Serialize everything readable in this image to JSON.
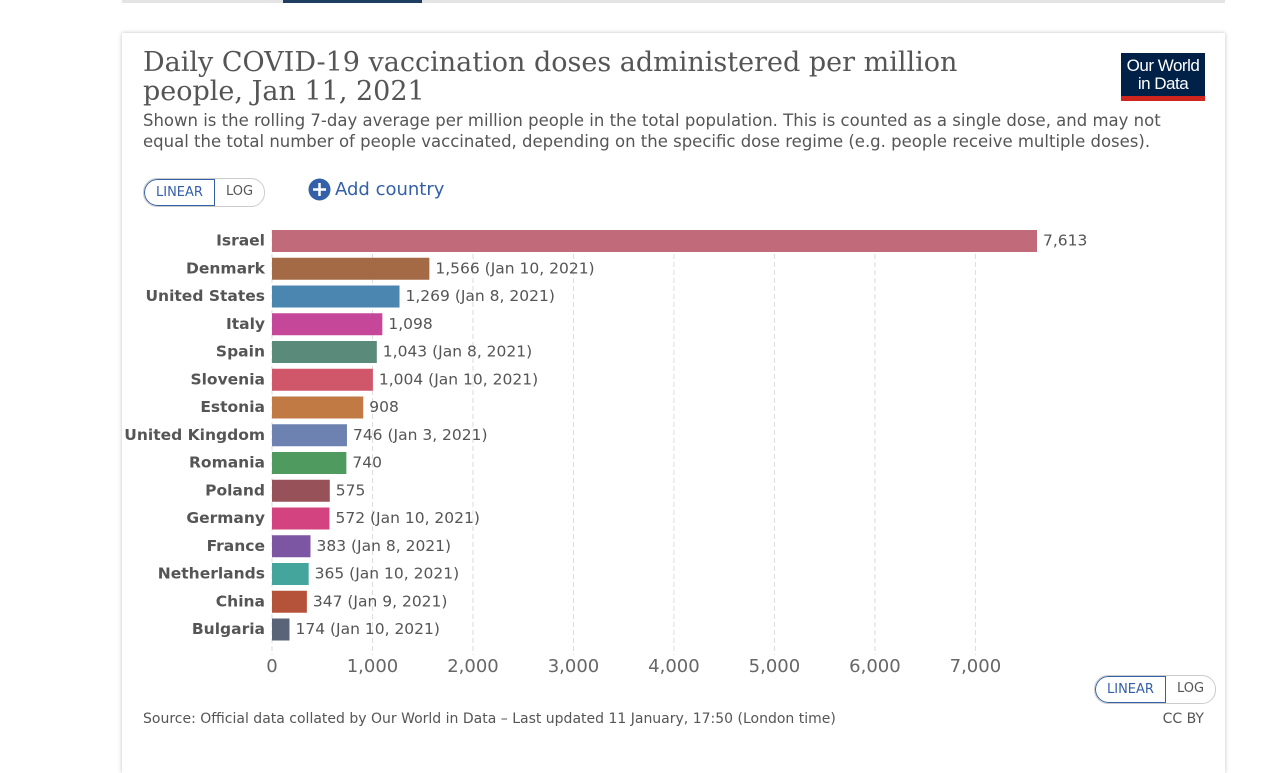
{
  "chart_data": {
    "type": "hbar",
    "title": "Daily COVID-19 vaccination doses administered per million people, Jan 11, 2021",
    "subtitle": "Shown is the rolling 7-day average per million people in the total population. This is counted as a single dose, and may not equal the total number of people vaccinated, depending on the specific dose regime (e.g. people receive multiple doses).",
    "categories": [
      "Israel",
      "Denmark",
      "United States",
      "Italy",
      "Spain",
      "Slovenia",
      "Estonia",
      "United Kingdom",
      "Romania",
      "Poland",
      "Germany",
      "France",
      "Netherlands",
      "China",
      "Bulgaria"
    ],
    "values": [
      7613,
      1566,
      1269,
      1098,
      1043,
      1004,
      908,
      746,
      740,
      575,
      572,
      383,
      365,
      347,
      174
    ],
    "value_labels": [
      "7,613",
      "1,566 (Jan 10, 2021)",
      "1,269 (Jan 8, 2021)",
      "1,098",
      "1,043 (Jan 8, 2021)",
      "1,004 (Jan 10, 2021)",
      "908",
      "746 (Jan 3, 2021)",
      "740",
      "575",
      "572 (Jan 10, 2021)",
      "383 (Jan 8, 2021)",
      "365 (Jan 10, 2021)",
      "347 (Jan 9, 2021)",
      "174 (Jan 10, 2021)"
    ],
    "colors": [
      "#c06a7a",
      "#a36a45",
      "#4b86b0",
      "#c5479a",
      "#5a8a7a",
      "#d0566a",
      "#c27a45",
      "#6d82b0",
      "#4f9a5e",
      "#975158",
      "#d2437f",
      "#7d56a3",
      "#44a59c",
      "#b5533a",
      "#5a6478"
    ],
    "xlim": [
      0,
      7613
    ],
    "xticks": [
      0,
      {
        "value": 1000,
        "label": "1,000"
      },
      {
        "value": 2000,
        "label": "2,000"
      },
      {
        "value": 3000,
        "label": "3,000"
      },
      {
        "value": 4000,
        "label": "4,000"
      },
      {
        "value": 5000,
        "label": "5,000"
      },
      {
        "value": 6000,
        "label": "6,000"
      },
      {
        "value": 7000,
        "label": "7,000"
      }
    ],
    "grid": true,
    "source": "Source: Official data collated by Our World in Data – Last updated 11 January, 17:50 (London time)",
    "license": "CC BY"
  },
  "ui": {
    "logo": [
      "Our World",
      "in Data"
    ],
    "scale_buttons": [
      "LINEAR",
      "LOG"
    ],
    "add_country": "Add country",
    "bottom_scale_buttons": [
      "LINEAR",
      "LOG"
    ]
  }
}
